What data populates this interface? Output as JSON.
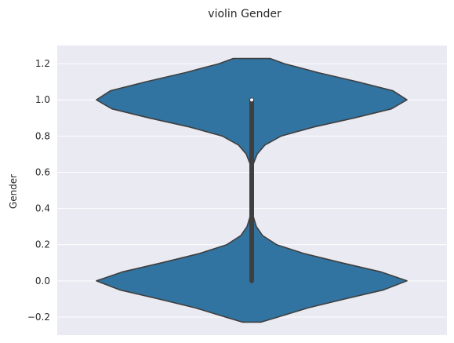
{
  "chart_data": {
    "type": "violin",
    "title": "violin Gender",
    "xlabel": "",
    "ylabel": "Gender",
    "ylim": [
      -0.3,
      1.3
    ],
    "yticks": [
      -0.2,
      0.0,
      0.2,
      0.4,
      0.6,
      0.8,
      1.0,
      1.2
    ],
    "ytick_labels": [
      "−0.2",
      "0.0",
      "0.2",
      "0.4",
      "0.6",
      "0.8",
      "1.0",
      "1.2"
    ],
    "grid": true,
    "violin": {
      "color": "#3274a1",
      "edge_color": "#3f3f3f",
      "density_profile": [
        {
          "y": -0.228,
          "half_width": 0.06
        },
        {
          "y": -0.2,
          "half_width": 0.17
        },
        {
          "y": -0.15,
          "half_width": 0.36
        },
        {
          "y": -0.1,
          "half_width": 0.6
        },
        {
          "y": -0.05,
          "half_width": 0.85
        },
        {
          "y": 0.0,
          "half_width": 1.0
        },
        {
          "y": 0.05,
          "half_width": 0.83
        },
        {
          "y": 0.1,
          "half_width": 0.58
        },
        {
          "y": 0.15,
          "half_width": 0.34
        },
        {
          "y": 0.2,
          "half_width": 0.16
        },
        {
          "y": 0.25,
          "half_width": 0.07
        },
        {
          "y": 0.3,
          "half_width": 0.03
        },
        {
          "y": 0.35,
          "half_width": 0.012
        },
        {
          "y": 0.4,
          "half_width": 0.005
        },
        {
          "y": 0.5,
          "half_width": 0.003
        },
        {
          "y": 0.6,
          "half_width": 0.005
        },
        {
          "y": 0.65,
          "half_width": 0.012
        },
        {
          "y": 0.7,
          "half_width": 0.035
        },
        {
          "y": 0.75,
          "half_width": 0.085
        },
        {
          "y": 0.8,
          "half_width": 0.19
        },
        {
          "y": 0.85,
          "half_width": 0.4
        },
        {
          "y": 0.9,
          "half_width": 0.66
        },
        {
          "y": 0.95,
          "half_width": 0.9
        },
        {
          "y": 1.0,
          "half_width": 1.0
        },
        {
          "y": 1.05,
          "half_width": 0.91
        },
        {
          "y": 1.1,
          "half_width": 0.68
        },
        {
          "y": 1.15,
          "half_width": 0.43
        },
        {
          "y": 1.2,
          "half_width": 0.21
        },
        {
          "y": 1.228,
          "half_width": 0.12
        }
      ],
      "box": {
        "q1": 0.0,
        "median": 1.0,
        "q3": 1.0,
        "whisker_low": 0.0,
        "whisker_high": 1.0
      }
    }
  }
}
